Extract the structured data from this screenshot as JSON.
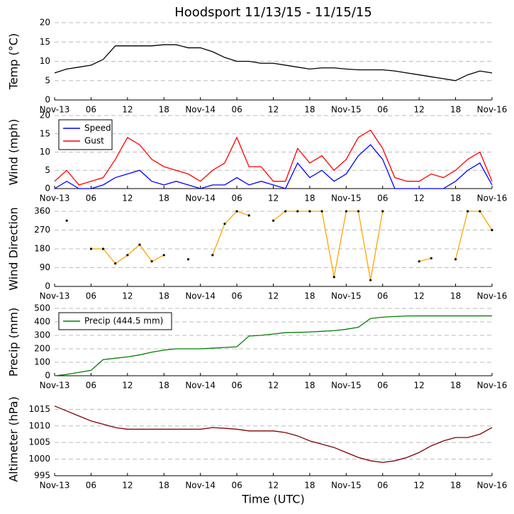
{
  "chart_data": [
    {
      "type": "line",
      "title": "Hoodsport 11/13/15 - 11/15/15",
      "ylabel": "Temp (°C)",
      "x": [
        0,
        2,
        4,
        6,
        8,
        10,
        12,
        14,
        16,
        18,
        20,
        22,
        24,
        26,
        28,
        30,
        32,
        34,
        36,
        38,
        40,
        42,
        44,
        46,
        48,
        50,
        52,
        54,
        56,
        58,
        60,
        62,
        64,
        66,
        68,
        70,
        72
      ],
      "series": [
        {
          "color": "#000000",
          "values": [
            7,
            8,
            8.5,
            9,
            10.5,
            14,
            14,
            14,
            14,
            14.3,
            14.3,
            13.5,
            13.5,
            12.5,
            11,
            10,
            10,
            9.5,
            9.5,
            9,
            8.5,
            8,
            8.3,
            8.3,
            8,
            7.8,
            7.8,
            7.8,
            7.5,
            7,
            6.5,
            6,
            5.5,
            5,
            6.5,
            7.5,
            7
          ]
        }
      ],
      "xlim": [
        0,
        72
      ],
      "xticks": [
        {
          "value": 0,
          "label": "Nov-13"
        },
        {
          "value": 6,
          "label": "06"
        },
        {
          "value": 12,
          "label": "12"
        },
        {
          "value": 18,
          "label": "18"
        },
        {
          "value": 24,
          "label": "Nov-14"
        },
        {
          "value": 30,
          "label": "06"
        },
        {
          "value": 36,
          "label": "12"
        },
        {
          "value": 42,
          "label": "18"
        },
        {
          "value": 48,
          "label": "Nov-15"
        },
        {
          "value": 54,
          "label": "06"
        },
        {
          "value": 60,
          "label": "12"
        },
        {
          "value": 66,
          "label": "18"
        },
        {
          "value": 72,
          "label": "Nov-16"
        }
      ],
      "ylim": [
        0,
        20
      ],
      "yticks": [
        0,
        5,
        10,
        15,
        20
      ],
      "grid": true
    },
    {
      "type": "line",
      "ylabel": "Wind (mph)",
      "x": [
        0,
        2,
        4,
        6,
        8,
        10,
        12,
        14,
        16,
        18,
        20,
        22,
        24,
        26,
        28,
        30,
        32,
        34,
        36,
        38,
        40,
        42,
        44,
        46,
        48,
        50,
        52,
        54,
        56,
        58,
        60,
        62,
        64,
        66,
        68,
        70,
        72
      ],
      "series": [
        {
          "name": "Speed",
          "color": "#0000ff",
          "values": [
            0,
            2,
            0,
            0,
            1,
            3,
            4,
            5,
            2,
            1,
            2,
            1,
            0,
            1,
            1,
            3,
            1,
            2,
            1,
            0,
            7,
            3,
            5,
            2,
            4,
            9,
            12,
            8,
            0,
            0,
            0,
            0,
            0,
            2,
            5,
            7,
            1
          ]
        },
        {
          "name": "Gust",
          "color": "#ff0000",
          "values": [
            2,
            5,
            1,
            2,
            3,
            8,
            14,
            12,
            8,
            6,
            5,
            4,
            2,
            5,
            7,
            14,
            6,
            6,
            2,
            2,
            11,
            7,
            9,
            5,
            8,
            14,
            16,
            11,
            3,
            2,
            2,
            4,
            3,
            5,
            8,
            10,
            2
          ]
        }
      ],
      "xlim": [
        0,
        72
      ],
      "xticks": [
        {
          "value": 0,
          "label": "Nov-13"
        },
        {
          "value": 6,
          "label": "06"
        },
        {
          "value": 12,
          "label": "12"
        },
        {
          "value": 18,
          "label": "18"
        },
        {
          "value": 24,
          "label": "Nov-14"
        },
        {
          "value": 30,
          "label": "06"
        },
        {
          "value": 36,
          "label": "12"
        },
        {
          "value": 42,
          "label": "18"
        },
        {
          "value": 48,
          "label": "Nov-15"
        },
        {
          "value": 54,
          "label": "06"
        },
        {
          "value": 60,
          "label": "12"
        },
        {
          "value": 66,
          "label": "18"
        },
        {
          "value": 72,
          "label": "Nov-16"
        }
      ],
      "ylim": [
        0,
        20
      ],
      "yticks": [
        0,
        5,
        10,
        15,
        20
      ],
      "grid": true,
      "legend": "upper left"
    },
    {
      "type": "line",
      "ylabel": "Wind Direction",
      "x": [
        0,
        2,
        4,
        6,
        8,
        10,
        12,
        14,
        16,
        18,
        20,
        22,
        24,
        26,
        28,
        30,
        32,
        34,
        36,
        38,
        40,
        42,
        44,
        46,
        48,
        50,
        52,
        54,
        56,
        58,
        60,
        62,
        64,
        66,
        68,
        70,
        72
      ],
      "series": [
        {
          "color": "#ffa500",
          "marker_color": "#000000",
          "values": [
            null,
            315,
            null,
            180,
            180,
            110,
            150,
            200,
            120,
            150,
            null,
            130,
            null,
            150,
            300,
            360,
            340,
            null,
            315,
            360,
            360,
            360,
            360,
            45,
            360,
            360,
            30,
            360,
            null,
            null,
            120,
            135,
            null,
            130,
            360,
            360,
            270
          ]
        }
      ],
      "xlim": [
        0,
        72
      ],
      "xticks": [
        {
          "value": 0,
          "label": "Nov-13"
        },
        {
          "value": 6,
          "label": "06"
        },
        {
          "value": 12,
          "label": "12"
        },
        {
          "value": 18,
          "label": "18"
        },
        {
          "value": 24,
          "label": "Nov-14"
        },
        {
          "value": 30,
          "label": "06"
        },
        {
          "value": 36,
          "label": "12"
        },
        {
          "value": 42,
          "label": "18"
        },
        {
          "value": 48,
          "label": "Nov-15"
        },
        {
          "value": 54,
          "label": "06"
        },
        {
          "value": 60,
          "label": "12"
        },
        {
          "value": 66,
          "label": "18"
        },
        {
          "value": 72,
          "label": "Nov-16"
        }
      ],
      "ylim": [
        0,
        360
      ],
      "yticks": [
        0,
        90,
        180,
        270,
        360
      ],
      "grid": true
    },
    {
      "type": "line",
      "ylabel": "Precip (mm)",
      "x": [
        0,
        2,
        4,
        6,
        8,
        10,
        12,
        14,
        16,
        18,
        20,
        22,
        24,
        26,
        28,
        30,
        32,
        34,
        36,
        38,
        40,
        42,
        44,
        46,
        48,
        50,
        52,
        54,
        56,
        58,
        60,
        62,
        64,
        66,
        68,
        70,
        72
      ],
      "series": [
        {
          "name": "Precip (444.5 mm)",
          "color": "#008000",
          "values": [
            0,
            10,
            25,
            40,
            120,
            130,
            140,
            155,
            175,
            190,
            200,
            200,
            200,
            205,
            210,
            215,
            295,
            300,
            310,
            320,
            322,
            325,
            330,
            335,
            345,
            360,
            425,
            435,
            440,
            444,
            444.5,
            444.5,
            444.5,
            444.5,
            444.5,
            444.5,
            444.5
          ]
        }
      ],
      "xlim": [
        0,
        72
      ],
      "xticks": [
        {
          "value": 0,
          "label": "Nov-13"
        },
        {
          "value": 6,
          "label": "06"
        },
        {
          "value": 12,
          "label": "12"
        },
        {
          "value": 18,
          "label": "18"
        },
        {
          "value": 24,
          "label": "Nov-14"
        },
        {
          "value": 30,
          "label": "06"
        },
        {
          "value": 36,
          "label": "12"
        },
        {
          "value": 42,
          "label": "18"
        },
        {
          "value": 48,
          "label": "Nov-15"
        },
        {
          "value": 54,
          "label": "06"
        },
        {
          "value": 60,
          "label": "12"
        },
        {
          "value": 66,
          "label": "18"
        },
        {
          "value": 72,
          "label": "Nov-16"
        }
      ],
      "ylim": [
        0,
        500
      ],
      "yticks": [
        0,
        100,
        200,
        300,
        400,
        500
      ],
      "grid": true,
      "legend": "upper left"
    },
    {
      "type": "line",
      "ylabel": "Altimeter (hPa)",
      "xlabel": "Time (UTC)",
      "x": [
        0,
        2,
        4,
        6,
        8,
        10,
        12,
        14,
        16,
        18,
        20,
        22,
        24,
        26,
        28,
        30,
        32,
        34,
        36,
        38,
        40,
        42,
        44,
        46,
        48,
        50,
        52,
        54,
        56,
        58,
        60,
        62,
        64,
        66,
        68,
        70,
        72
      ],
      "series": [
        {
          "color": "#800000",
          "values": [
            1016,
            1014.5,
            1013,
            1011.5,
            1010.5,
            1009.5,
            1009,
            1009,
            1009,
            1009,
            1009,
            1009,
            1009,
            1009.5,
            1009.3,
            1009,
            1008.5,
            1008.5,
            1008.5,
            1008,
            1007,
            1005.5,
            1004.5,
            1003.5,
            1002,
            1000.5,
            999.5,
            999,
            999.5,
            1000.5,
            1002,
            1004,
            1005.5,
            1006.5,
            1006.5,
            1007.5,
            1009.5
          ]
        }
      ],
      "xlim": [
        0,
        72
      ],
      "xticks": [
        {
          "value": 0,
          "label": "Nov-13"
        },
        {
          "value": 6,
          "label": "06"
        },
        {
          "value": 12,
          "label": "12"
        },
        {
          "value": 18,
          "label": "18"
        },
        {
          "value": 24,
          "label": "Nov-14"
        },
        {
          "value": 30,
          "label": "06"
        },
        {
          "value": 36,
          "label": "12"
        },
        {
          "value": 42,
          "label": "18"
        },
        {
          "value": 48,
          "label": "Nov-15"
        },
        {
          "value": 54,
          "label": "06"
        },
        {
          "value": 60,
          "label": "12"
        },
        {
          "value": 66,
          "label": "18"
        },
        {
          "value": 72,
          "label": "Nov-16"
        }
      ],
      "ylim": [
        995,
        1017
      ],
      "yticks": [
        995,
        1000,
        1005,
        1010,
        1015
      ],
      "grid": true
    }
  ]
}
